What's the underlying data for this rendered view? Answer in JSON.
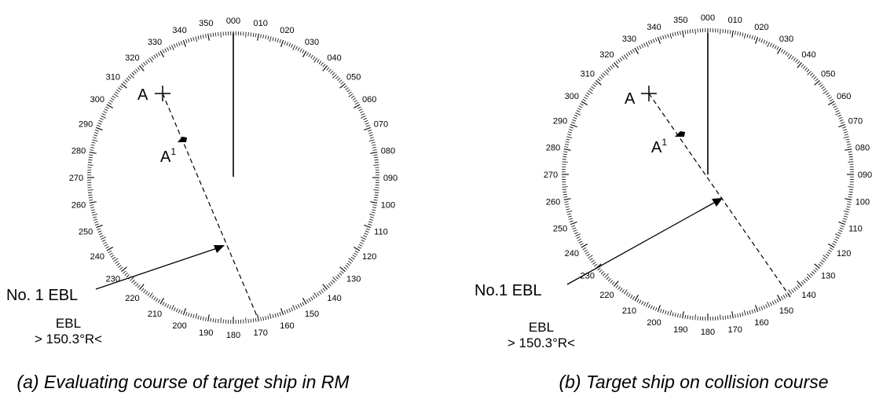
{
  "panels": [
    {
      "caption": "(a) Evaluating course of target ship in RM",
      "target_label": "A",
      "target_label_later": "A",
      "target_label_sup": "1",
      "ebl_name": "No. 1 EBL",
      "ebl_title": "EBL",
      "ebl_readout": "> 150.3°R<"
    },
    {
      "caption": "(b) Target ship on collision course",
      "target_label": "A",
      "target_label_later": "A",
      "target_label_sup": "1",
      "ebl_name": "No.1 EBL",
      "ebl_title": "EBL",
      "ebl_readout": "> 150.3°R<"
    }
  ],
  "bearing_scale": {
    "labels": [
      "000",
      "010",
      "020",
      "030",
      "040",
      "050",
      "060",
      "070",
      "080",
      "090",
      "100",
      "110",
      "120",
      "130",
      "140",
      "150",
      "160",
      "170",
      "180",
      "190",
      "200",
      "210",
      "220",
      "230",
      "240",
      "250",
      "260",
      "270",
      "280",
      "290",
      "300",
      "310",
      "320",
      "330",
      "340",
      "350"
    ],
    "ebl_bearing_deg": 150.3
  }
}
